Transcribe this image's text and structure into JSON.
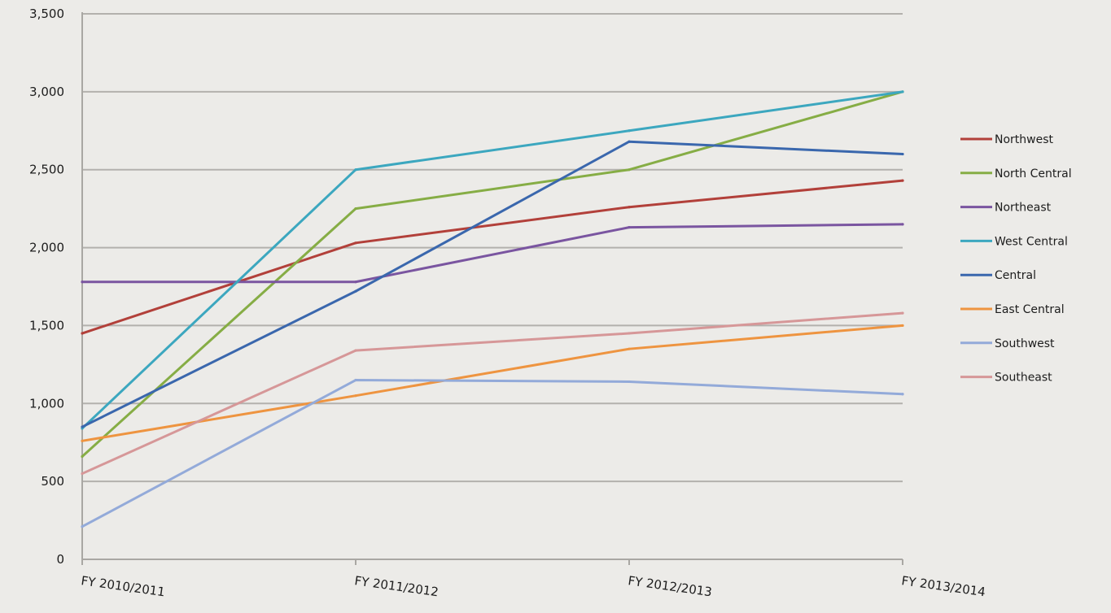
{
  "chart_data": {
    "type": "line",
    "title": "",
    "xlabel": "",
    "ylabel": "",
    "categories": [
      "FY 2010/2011",
      "FY 2011/2012",
      "FY 2012/2013",
      "FY 2013/2014"
    ],
    "ylim": [
      0,
      3500
    ],
    "yticks": [
      0,
      500,
      1000,
      1500,
      2000,
      2500,
      3000,
      3500
    ],
    "ytick_labels": [
      "0",
      "500",
      "1,000",
      "1,500",
      "2,000",
      "2,500",
      "3,000",
      "3,500"
    ],
    "grid": true,
    "legend_position": "right",
    "series": [
      {
        "name": "Northwest",
        "color": "#b2403a",
        "values": [
          1450,
          2030,
          2260,
          2430
        ]
      },
      {
        "name": "North Central",
        "color": "#86ad45",
        "values": [
          660,
          2250,
          2500,
          3000
        ]
      },
      {
        "name": "Northeast",
        "color": "#7a55a0",
        "values": [
          1780,
          1780,
          2130,
          2150
        ]
      },
      {
        "name": "West Central",
        "color": "#3ca7bf",
        "values": [
          840,
          2500,
          2750,
          3000
        ]
      },
      {
        "name": "Central",
        "color": "#3a67ad",
        "values": [
          850,
          1720,
          2680,
          2600
        ]
      },
      {
        "name": "East Central",
        "color": "#ee9440",
        "values": [
          760,
          1050,
          1350,
          1500
        ]
      },
      {
        "name": "Southwest",
        "color": "#93aad9",
        "values": [
          210,
          1150,
          1140,
          1060
        ]
      },
      {
        "name": "Southeast",
        "color": "#d69798",
        "values": [
          550,
          1340,
          1450,
          1580
        ]
      }
    ]
  }
}
